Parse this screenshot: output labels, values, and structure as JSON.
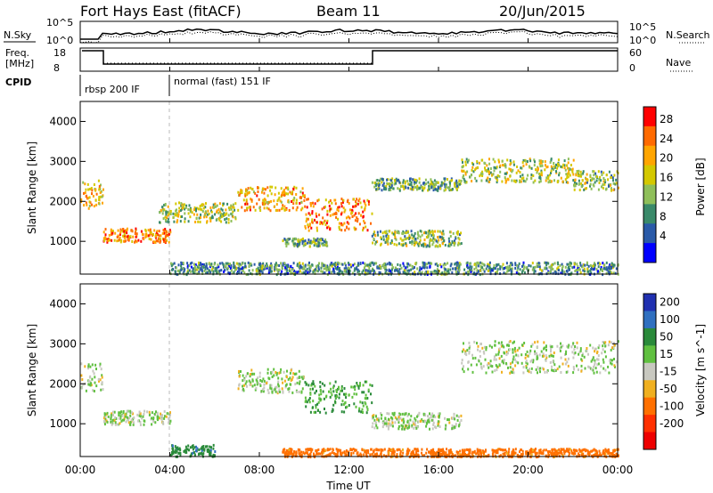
{
  "header": {
    "station": "Fort Hays East (fitACF)",
    "beam": "Beam 11",
    "date": "20/Jun/2015"
  },
  "side_labels": {
    "nsky": "N.Sky",
    "nsearch": "N.Search",
    "freq": "Freq.",
    "freq_unit": "[MHz]",
    "nave": "Nave",
    "cpid": "CPID"
  },
  "noise_axis": {
    "left_top": "10^5",
    "left_bottom": "10^0",
    "right_top": "10^5",
    "right_bottom": "10^0"
  },
  "freq_axis": {
    "left_top": "18",
    "left_bottom": "8",
    "right_top": "60",
    "right_bottom": "0"
  },
  "cpid_segments": [
    {
      "label": "rbsp 200 IF",
      "start_hour": 0
    },
    {
      "label": "normal (fast) 151 IF",
      "start_hour": 4
    }
  ],
  "power_panel": {
    "ylabel": "Slant Range [km]",
    "colorbar_label": "Power [dB]",
    "colorbar_ticks": [
      "28",
      "24",
      "20",
      "16",
      "12",
      "8",
      "4"
    ],
    "colors": [
      "#ff0000",
      "#ff6a00",
      "#ffa500",
      "#d4c800",
      "#8fbf5a",
      "#3a8a6a",
      "#2a5aa8",
      "#0000ff"
    ]
  },
  "velocity_panel": {
    "ylabel": "Slant Range [km]",
    "colorbar_label": "Velocity [m s^-1]",
    "colorbar_ticks": [
      "200",
      "100",
      "50",
      "15",
      "-15",
      "-50",
      "-100",
      "-200"
    ],
    "colors": [
      "#2030b0",
      "#3070c0",
      "#2a8a3a",
      "#60c040",
      "#c8c8c0",
      "#f0b020",
      "#ff7000",
      "#ff3000",
      "#ee0000"
    ]
  },
  "x_axis": {
    "label": "Time UT",
    "ticks": [
      "00:00",
      "04:00",
      "08:00",
      "12:00",
      "16:00",
      "20:00",
      "00:00"
    ]
  },
  "y_axis": {
    "ticks": [
      "1000",
      "2000",
      "3000",
      "4000"
    ]
  },
  "chart_data": [
    {
      "type": "heatmap",
      "name": "power",
      "x_range_hours": [
        0,
        24
      ],
      "y_range_km": [
        180,
        4500
      ],
      "ylabel": "Slant Range [km]",
      "colorbar": {
        "label": "Power [dB]",
        "range": [
          0,
          30
        ]
      },
      "scatter_bands": [
        {
          "t0": 0.0,
          "t1": 1.0,
          "r0": 1850,
          "r1": 2550,
          "power": 20
        },
        {
          "t0": 1.0,
          "t1": 4.0,
          "r0": 1000,
          "r1": 1350,
          "power": 24
        },
        {
          "t0": 3.5,
          "t1": 7.0,
          "r0": 1500,
          "r1": 2000,
          "power": 16
        },
        {
          "t0": 7.0,
          "t1": 10.0,
          "r0": 1800,
          "r1": 2400,
          "power": 22
        },
        {
          "t0": 10.0,
          "t1": 13.0,
          "r0": 1300,
          "r1": 2100,
          "power": 24
        },
        {
          "t0": 9.0,
          "t1": 11.0,
          "r0": 900,
          "r1": 1100,
          "power": 12
        },
        {
          "t0": 13.0,
          "t1": 17.0,
          "r0": 900,
          "r1": 1300,
          "power": 14
        },
        {
          "t0": 13.0,
          "t1": 17.0,
          "r0": 2300,
          "r1": 2600,
          "power": 12
        },
        {
          "t0": 17.0,
          "t1": 22.0,
          "r0": 2500,
          "r1": 3100,
          "power": 16
        },
        {
          "t0": 22.0,
          "t1": 24.0,
          "r0": 2300,
          "r1": 2800,
          "power": 14
        },
        {
          "t0": 4.0,
          "t1": 24.0,
          "r0": 200,
          "r1": 500,
          "power": 10
        }
      ]
    },
    {
      "type": "heatmap",
      "name": "velocity",
      "x_range_hours": [
        0,
        24
      ],
      "y_range_km": [
        180,
        4500
      ],
      "ylabel": "Slant Range [km]",
      "colorbar": {
        "label": "Velocity [m s^-1]",
        "range": [
          -200,
          200
        ]
      },
      "scatter_bands": [
        {
          "t0": 0.0,
          "t1": 1.0,
          "r0": 1850,
          "r1": 2550,
          "velocity": 0
        },
        {
          "t0": 1.0,
          "t1": 4.0,
          "r0": 1000,
          "r1": 1350,
          "velocity": 0
        },
        {
          "t0": 7.0,
          "t1": 10.0,
          "r0": 1800,
          "r1": 2400,
          "velocity": 0
        },
        {
          "t0": 10.0,
          "t1": 13.0,
          "r0": 1300,
          "r1": 2100,
          "velocity": 30
        },
        {
          "t0": 13.0,
          "t1": 17.0,
          "r0": 900,
          "r1": 1300,
          "velocity": 0
        },
        {
          "t0": 17.0,
          "t1": 24.0,
          "r0": 2300,
          "r1": 3100,
          "velocity": 0
        },
        {
          "t0": 4.0,
          "t1": 6.0,
          "r0": 200,
          "r1": 500,
          "velocity": 60
        },
        {
          "t0": 9.0,
          "t1": 24.0,
          "r0": 200,
          "r1": 400,
          "velocity": -50
        }
      ]
    }
  ]
}
